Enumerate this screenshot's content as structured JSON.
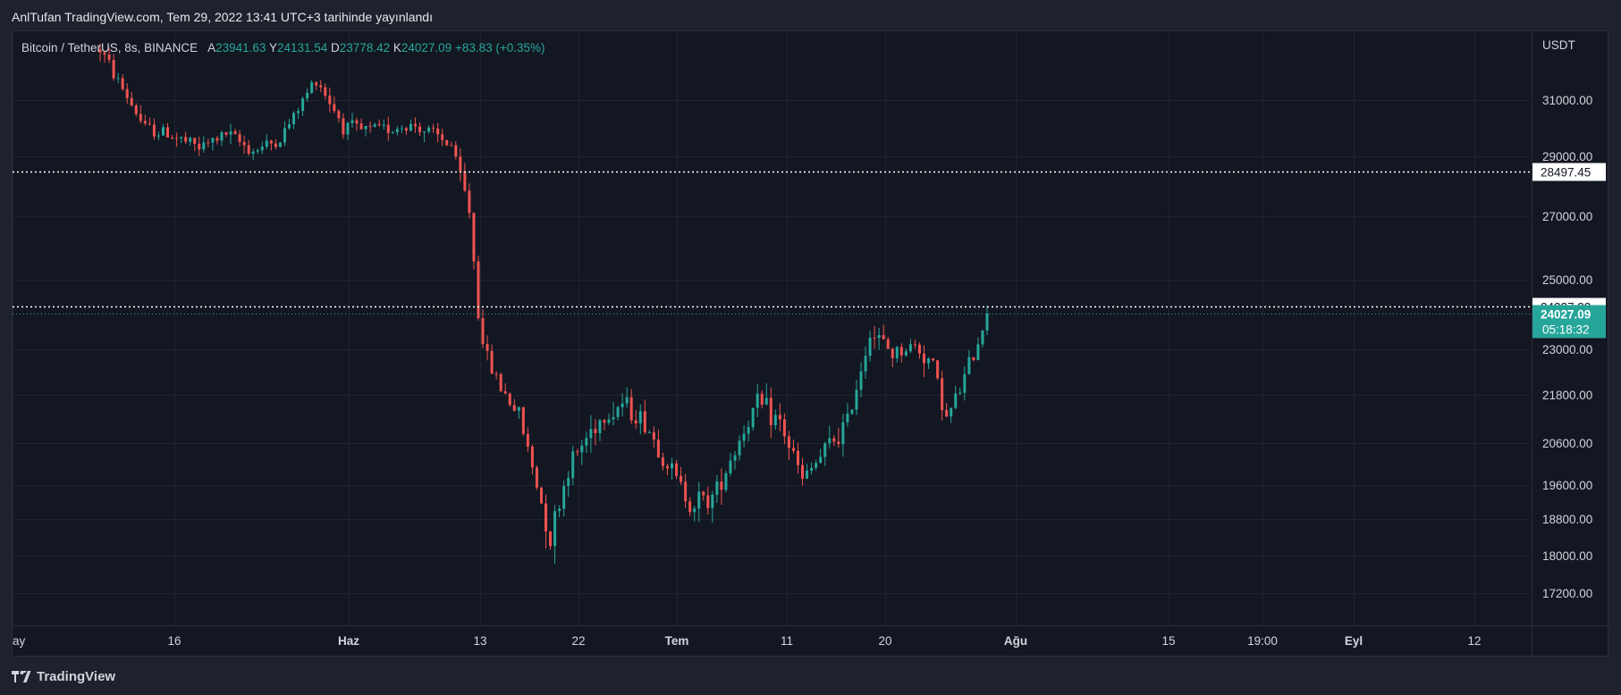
{
  "header": {
    "publish_note": "AnlTufan TradingView.com, Tem 29, 2022 13:41 UTC+3 tarihinde yayınlandı"
  },
  "legend": {
    "symbol": "Bitcoin / TetherUS, 8s, BINANCE",
    "open_label": "A",
    "open": "23941.63",
    "high_label": "Y",
    "high": "24131.54",
    "low_label": "D",
    "low": "23778.42",
    "close_label": "K",
    "close": "24027.09",
    "change": "+83.83 (+0.35%)"
  },
  "footer": {
    "brand": "TradingView"
  },
  "colors": {
    "up": "#26a69a",
    "down": "#ef5350",
    "background": "#131722",
    "grid": "#1f2330",
    "text": "#d1d4dc",
    "price_tag": "#26a69a"
  },
  "chart_data": {
    "type": "candlestick",
    "title": "Bitcoin / TetherUS, 8s, BINANCE",
    "currency": "USDT",
    "y_ticks": [
      "31000.00",
      "29000.00",
      "27000.00",
      "25000.00",
      "23000.00",
      "21800.00",
      "20600.00",
      "19600.00",
      "18800.00",
      "18000.00",
      "17200.00"
    ],
    "x_ticks": [
      "ay",
      "16",
      "Haz",
      "13",
      "22",
      "Tem",
      "11",
      "20",
      "Ağu",
      "15",
      "19:00",
      "Eyl",
      "12"
    ],
    "bold_x_ticks": [
      "Haz",
      "Tem",
      "Ağu",
      "Eyl"
    ],
    "horizontal_lines": [
      {
        "label": "28497.45",
        "value": 28497.45,
        "style": "dotted"
      },
      {
        "label": "24227.22",
        "value": 24227.22,
        "style": "dotted"
      }
    ],
    "last_price": {
      "value": "24027.09",
      "countdown": "05:18:32"
    },
    "series_path": [
      [
        0,
        32800
      ],
      [
        10,
        30000
      ],
      [
        15,
        29800
      ],
      [
        22,
        29300
      ],
      [
        28,
        29800
      ],
      [
        34,
        29200
      ],
      [
        40,
        29600
      ],
      [
        48,
        31800
      ],
      [
        54,
        30100
      ],
      [
        58,
        29900
      ],
      [
        64,
        30000
      ],
      [
        70,
        30100
      ],
      [
        78,
        29400
      ],
      [
        82,
        27200
      ],
      [
        84,
        24000
      ],
      [
        86,
        22700
      ],
      [
        90,
        21800
      ],
      [
        93,
        21300
      ],
      [
        97,
        19600
      ],
      [
        100,
        18400
      ],
      [
        104,
        20000
      ],
      [
        110,
        21100
      ],
      [
        116,
        21600
      ],
      [
        121,
        21100
      ],
      [
        126,
        20100
      ],
      [
        131,
        19200
      ],
      [
        136,
        19300
      ],
      [
        142,
        20700
      ],
      [
        146,
        21600
      ],
      [
        151,
        21100
      ],
      [
        156,
        19700
      ],
      [
        161,
        20400
      ],
      [
        166,
        21100
      ],
      [
        171,
        23500
      ],
      [
        176,
        22900
      ],
      [
        181,
        23100
      ],
      [
        185,
        22600
      ],
      [
        188,
        21200
      ],
      [
        191,
        21900
      ],
      [
        194,
        22900
      ],
      [
        197,
        24027
      ]
    ],
    "candle_count": 198
  }
}
